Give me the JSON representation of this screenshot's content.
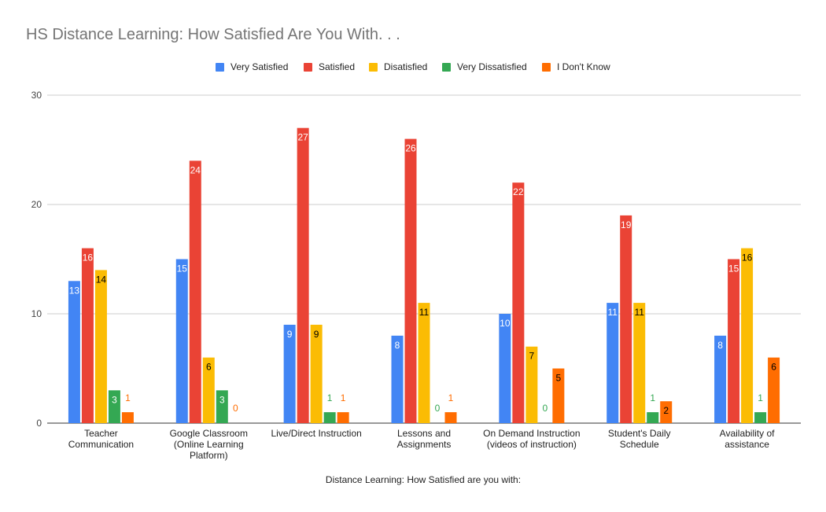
{
  "chart_data": {
    "type": "bar",
    "title": "HS Distance Learning: How Satisfied Are You With. . .",
    "xlabel": "Distance Learning: How Satisfied are you with:",
    "ylabel": "",
    "ylim": [
      0,
      30
    ],
    "yticks": [
      0,
      10,
      20,
      30
    ],
    "grid": true,
    "legend_position": "top",
    "categories": [
      [
        "Teacher",
        "Communication"
      ],
      [
        "Google Classroom",
        "(Online Learning",
        "Platform)"
      ],
      [
        "Live/Direct Instruction"
      ],
      [
        "Lessons and",
        "Assignments"
      ],
      [
        "On Demand Instruction",
        "(videos of instruction)"
      ],
      [
        "Student's Daily",
        "Schedule"
      ],
      [
        "Availability of",
        "assistance"
      ]
    ],
    "series": [
      {
        "name": "Very Satisfied",
        "color": "#4285f4",
        "label_color": "#ffffff",
        "label_inside": true,
        "values": [
          13,
          15,
          9,
          8,
          10,
          11,
          8
        ]
      },
      {
        "name": "Satisfied",
        "color": "#ea4335",
        "label_color": "#ffffff",
        "label_inside": true,
        "values": [
          16,
          24,
          27,
          26,
          22,
          19,
          15
        ]
      },
      {
        "name": "Disatisfied",
        "color": "#fbbc04",
        "label_color": "#000000",
        "label_inside": true,
        "values": [
          14,
          6,
          9,
          11,
          7,
          11,
          16
        ]
      },
      {
        "name": "Very Dissatisfied",
        "color": "#34a853",
        "label_color": "#ffffff",
        "label_inside": true,
        "values": [
          3,
          3,
          1,
          0,
          0,
          1,
          1
        ]
      },
      {
        "name": "I Don't Know",
        "color": "#ff6d01",
        "label_color": "#000000",
        "label_inside": true,
        "values": [
          1,
          0,
          1,
          1,
          5,
          2,
          6
        ]
      }
    ]
  }
}
